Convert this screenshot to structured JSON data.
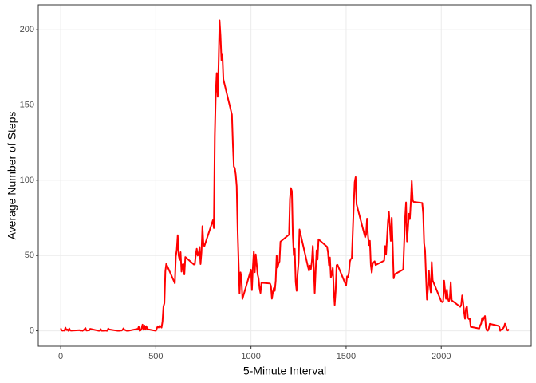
{
  "chart_data": {
    "type": "line",
    "x_label": "5-Minute Interval",
    "y_label": "Average Number of Steps",
    "x": [
      0,
      5,
      10,
      15,
      20,
      25,
      30,
      35,
      40,
      45,
      50,
      55,
      100,
      105,
      110,
      115,
      120,
      125,
      130,
      135,
      140,
      145,
      150,
      155,
      200,
      205,
      210,
      215,
      220,
      225,
      230,
      235,
      240,
      245,
      250,
      255,
      300,
      305,
      310,
      315,
      320,
      325,
      330,
      335,
      340,
      345,
      350,
      355,
      400,
      405,
      410,
      415,
      420,
      425,
      430,
      435,
      440,
      445,
      450,
      455,
      500,
      505,
      510,
      515,
      520,
      525,
      530,
      535,
      540,
      545,
      550,
      555,
      600,
      605,
      610,
      615,
      620,
      625,
      630,
      635,
      640,
      645,
      650,
      655,
      700,
      705,
      710,
      715,
      720,
      725,
      730,
      735,
      740,
      745,
      750,
      755,
      800,
      805,
      810,
      815,
      820,
      825,
      830,
      835,
      840,
      845,
      850,
      855,
      900,
      905,
      910,
      915,
      920,
      925,
      930,
      935,
      940,
      945,
      950,
      955,
      1000,
      1005,
      1010,
      1015,
      1020,
      1025,
      1030,
      1035,
      1040,
      1045,
      1050,
      1055,
      1100,
      1105,
      1110,
      1115,
      1120,
      1125,
      1130,
      1135,
      1140,
      1145,
      1150,
      1155,
      1200,
      1205,
      1210,
      1215,
      1220,
      1225,
      1230,
      1235,
      1240,
      1245,
      1250,
      1255,
      1300,
      1305,
      1310,
      1315,
      1320,
      1325,
      1330,
      1335,
      1340,
      1345,
      1350,
      1355,
      1400,
      1405,
      1410,
      1415,
      1420,
      1425,
      1430,
      1435,
      1440,
      1445,
      1450,
      1455,
      1500,
      1505,
      1510,
      1515,
      1520,
      1525,
      1530,
      1535,
      1540,
      1545,
      1550,
      1555,
      1600,
      1605,
      1610,
      1615,
      1620,
      1625,
      1630,
      1635,
      1640,
      1645,
      1650,
      1655,
      1700,
      1705,
      1710,
      1715,
      1720,
      1725,
      1730,
      1735,
      1740,
      1745,
      1750,
      1755,
      1800,
      1805,
      1810,
      1815,
      1820,
      1825,
      1830,
      1835,
      1840,
      1845,
      1850,
      1855,
      1900,
      1905,
      1910,
      1915,
      1920,
      1925,
      1930,
      1935,
      1940,
      1945,
      1950,
      1955,
      2000,
      2005,
      2010,
      2015,
      2020,
      2025,
      2030,
      2035,
      2040,
      2045,
      2050,
      2055,
      2100,
      2105,
      2110,
      2115,
      2120,
      2125,
      2130,
      2135,
      2140,
      2145,
      2150,
      2155,
      2200,
      2205,
      2210,
      2215,
      2220,
      2225,
      2230,
      2235,
      2240,
      2245,
      2250,
      2255,
      2300,
      2305,
      2310,
      2315,
      2320,
      2325,
      2330,
      2335,
      2340,
      2345,
      2350,
      2355
    ],
    "series": [
      {
        "name": "Average Number of Steps",
        "color": "#ff0000",
        "values": [
          1.7,
          0.3,
          0.1,
          0.2,
          0.1,
          2.1,
          0.5,
          0.9,
          0,
          1.5,
          0.3,
          0.1,
          0.4,
          0,
          0.2,
          0,
          0.4,
          1.1,
          1.8,
          0.2,
          0.2,
          0.3,
          0.3,
          1.3,
          0,
          0,
          1.1,
          0,
          0,
          0.1,
          0,
          0.2,
          0,
          0,
          1.5,
          0.9,
          0,
          0,
          0,
          0.2,
          0.2,
          0.6,
          1.6,
          0.6,
          0.5,
          0.1,
          0,
          0,
          1.2,
          0.9,
          2.6,
          0,
          0.3,
          1.4,
          4.1,
          0.7,
          3.5,
          0.8,
          3.1,
          1.1,
          0,
          1.5,
          3.0,
          2.2,
          3.3,
          3.0,
          2.1,
          6.1,
          16.0,
          18.3,
          39.5,
          44.5,
          31.5,
          49.3,
          53.8,
          63.5,
          50.0,
          47.1,
          52.2,
          39.3,
          44.0,
          44.2,
          37.4,
          49.0,
          44.0,
          44.2,
          50.5,
          54.5,
          49.9,
          50.9,
          55.7,
          44.3,
          52.3,
          69.5,
          57.8,
          56.2,
          73.4,
          68.2,
          129.4,
          157.5,
          171.2,
          155.4,
          177.3,
          206.2,
          195.9,
          179.6,
          183.4,
          167.0,
          143.5,
          124.0,
          109.1,
          108.1,
          103.7,
          96.0,
          66.2,
          45.2,
          24.8,
          38.8,
          35.0,
          21.1,
          40.6,
          27.0,
          42.4,
          52.7,
          38.9,
          50.8,
          44.3,
          37.4,
          34.7,
          28.3,
          25.1,
          31.9,
          31.4,
          29.7,
          21.3,
          25.5,
          28.4,
          26.5,
          33.3,
          50.0,
          42.0,
          44.6,
          46.0,
          59.2,
          63.9,
          87.7,
          94.8,
          92.8,
          63.4,
          50.2,
          54.5,
          32.4,
          26.5,
          37.7,
          45.1,
          67.3,
          42.3,
          39.9,
          43.3,
          41.0,
          46.2,
          56.4,
          42.8,
          25.1,
          40.0,
          53.5,
          47.3,
          60.8,
          55.8,
          52.0,
          43.6,
          48.7,
          35.5,
          37.5,
          41.8,
          27.5,
          17.1,
          26.1,
          43.6,
          43.8,
          30.0,
          36.1,
          35.5,
          38.8,
          46.0,
          47.8,
          48.1,
          65.3,
          82.9,
          98.7,
          102.1,
          84.0,
          62.1,
          64.1,
          74.5,
          63.2,
          56.9,
          59.8,
          43.9,
          38.6,
          44.7,
          45.5,
          46.2,
          43.7,
          46.6,
          56.3,
          50.7,
          61.2,
          72.7,
          78.9,
          68.9,
          59.7,
          75.1,
          56.5,
          34.8,
          37.5,
          40.7,
          58.0,
          74.7,
          85.3,
          59.3,
          67.8,
          77.7,
          74.2,
          85.3,
          99.5,
          86.6,
          85.6,
          84.9,
          77.8,
          58.0,
          53.4,
          36.3,
          20.7,
          27.4,
          40.0,
          30.2,
          25.5,
          45.7,
          33.5,
          19.6,
          19.0,
          19.3,
          33.3,
          26.8,
          21.2,
          27.3,
          21.3,
          19.5,
          21.3,
          32.3,
          20.2,
          15.9,
          17.2,
          23.5,
          19.2,
          12.5,
          8.0,
          14.7,
          16.3,
          8.7,
          7.8,
          8.1,
          2.6,
          1.5,
          3.7,
          4.8,
          8.5,
          7.1,
          8.7,
          9.8,
          2.2,
          0.3,
          0.1,
          1.6,
          4.6,
          3.3,
          2.8,
          0,
          0.8,
          1.0,
          1.6,
          2.6,
          4.7,
          3.3,
          0.6,
          0.2,
          1.1
        ]
      }
    ],
    "xlim": [
      -117.75,
      2472.75
    ],
    "xticks": [
      0,
      500,
      1000,
      1500,
      2000
    ],
    "ylim": [
      -10.3,
      216.5
    ],
    "yticks": [
      0,
      50,
      100,
      150,
      200
    ],
    "grid": true
  }
}
